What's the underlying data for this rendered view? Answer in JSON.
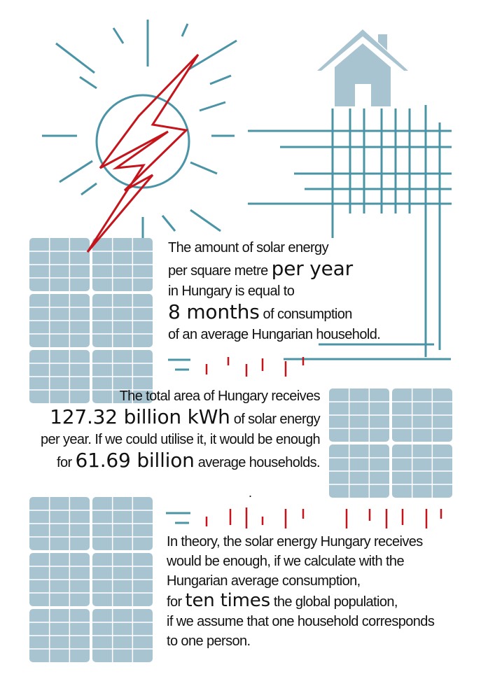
{
  "colors": {
    "teal": "#4a94a6",
    "panel": "#a9c4d1",
    "red": "#c4151c",
    "text": "#111111"
  },
  "icons": [
    "sun-icon",
    "lightning-bolt-icon",
    "house-icon",
    "power-grid-icon",
    "solar-panel-icon"
  ],
  "block1": {
    "line1": "The amount of solar energy",
    "line2_a": "per square metre ",
    "line2_b": "per year",
    "line3": "in Hungary is equal to",
    "line4_a": "8 months",
    "line4_b": " of consumption",
    "line5": "of an average Hungarian household."
  },
  "block2": {
    "line1": "The total area of Hungary receives",
    "line2_a": "127.32 billion kWh",
    "line2_b": "  of solar energy",
    "line3": "per year. If we could utilise it, it would be enough",
    "line4_a": "for ",
    "line4_b": "61.69 billion",
    "line4_c": " average households."
  },
  "dot": ".",
  "block3": {
    "line1": "In theory, the solar energy Hungary receives",
    "line2": "would be enough, if we calculate with the",
    "line3": "Hungarian average consumption,",
    "line4_a": "for ",
    "line4_b": "ten times",
    "line4_c": " the global population,",
    "line5": "if we assume that one household corresponds",
    "line6": "to one person."
  }
}
